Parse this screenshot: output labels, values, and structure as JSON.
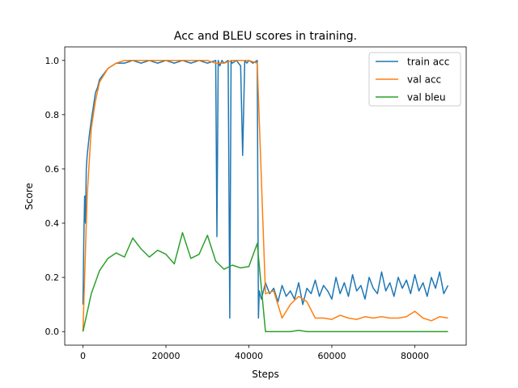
{
  "chart_data": {
    "type": "line",
    "title": "Acc and BLEU scores in training.",
    "xlabel": "Steps",
    "ylabel": "Score",
    "xlim": [
      -4400,
      92400
    ],
    "ylim": [
      -0.05,
      1.05
    ],
    "x_ticks": [
      0,
      20000,
      40000,
      60000,
      80000
    ],
    "x_tick_labels": [
      "0",
      "20000",
      "40000",
      "60000",
      "80000"
    ],
    "y_ticks": [
      0.0,
      0.2,
      0.4,
      0.6,
      0.8,
      1.0
    ],
    "y_tick_labels": [
      "0.0",
      "0.2",
      "0.4",
      "0.6",
      "0.8",
      "1.0"
    ],
    "grid": false,
    "legend_position": "top-right",
    "series": [
      {
        "name": "train acc",
        "color": "#1f77b4",
        "x": [
          0,
          200,
          400,
          600,
          800,
          1000,
          1500,
          2000,
          2500,
          3000,
          3500,
          4000,
          5000,
          6000,
          7000,
          8000,
          10000,
          12000,
          14000,
          16000,
          18000,
          20000,
          22000,
          24000,
          26000,
          28000,
          30000,
          32000,
          32300,
          32600,
          33000,
          33500,
          34000,
          35000,
          35400,
          35700,
          36000,
          37000,
          38000,
          38500,
          39000,
          39500,
          40000,
          41000,
          42000,
          42300,
          42500,
          43000,
          44000,
          45000,
          46000,
          47000,
          48000,
          49000,
          50000,
          51000,
          52000,
          53000,
          54000,
          55000,
          56000,
          57000,
          58000,
          59000,
          60000,
          61000,
          62000,
          63000,
          64000,
          65000,
          66000,
          67000,
          68000,
          69000,
          70000,
          71000,
          72000,
          73000,
          74000,
          75000,
          76000,
          77000,
          78000,
          79000,
          80000,
          81000,
          82000,
          83000,
          84000,
          85000,
          86000,
          87000,
          88000
        ],
        "y": [
          0.1,
          0.35,
          0.5,
          0.4,
          0.6,
          0.65,
          0.72,
          0.78,
          0.83,
          0.88,
          0.9,
          0.93,
          0.95,
          0.97,
          0.98,
          0.99,
          0.99,
          1.0,
          0.99,
          1.0,
          0.99,
          1.0,
          0.99,
          1.0,
          0.99,
          1.0,
          0.99,
          1.0,
          0.35,
          1.0,
          0.98,
          1.0,
          0.99,
          1.0,
          0.05,
          1.0,
          0.99,
          1.0,
          0.98,
          0.65,
          1.0,
          0.99,
          1.0,
          0.99,
          1.0,
          0.05,
          0.15,
          0.12,
          0.18,
          0.14,
          0.16,
          0.11,
          0.17,
          0.13,
          0.15,
          0.12,
          0.18,
          0.1,
          0.16,
          0.14,
          0.19,
          0.13,
          0.17,
          0.15,
          0.12,
          0.2,
          0.14,
          0.18,
          0.13,
          0.21,
          0.15,
          0.17,
          0.12,
          0.2,
          0.16,
          0.14,
          0.22,
          0.15,
          0.18,
          0.13,
          0.2,
          0.16,
          0.19,
          0.14,
          0.21,
          0.15,
          0.18,
          0.13,
          0.2,
          0.16,
          0.22,
          0.14,
          0.17
        ]
      },
      {
        "name": "val acc",
        "color": "#ff7f0e",
        "x": [
          0,
          1000,
          2000,
          3000,
          4000,
          6000,
          8000,
          10000,
          12000,
          14000,
          16000,
          18000,
          20000,
          22000,
          24000,
          26000,
          28000,
          30000,
          32000,
          34000,
          36000,
          38000,
          40000,
          42000,
          44000,
          46000,
          48000,
          50000,
          52000,
          54000,
          56000,
          58000,
          60000,
          62000,
          64000,
          66000,
          68000,
          70000,
          72000,
          74000,
          76000,
          78000,
          80000,
          82000,
          84000,
          86000,
          88000
        ],
        "y": [
          0.0,
          0.5,
          0.75,
          0.85,
          0.92,
          0.97,
          0.99,
          1.0,
          1.0,
          1.0,
          1.0,
          1.0,
          1.0,
          1.0,
          1.0,
          1.0,
          1.0,
          1.0,
          0.99,
          0.99,
          1.0,
          1.0,
          1.0,
          0.99,
          0.14,
          0.15,
          0.05,
          0.1,
          0.13,
          0.11,
          0.05,
          0.05,
          0.045,
          0.06,
          0.05,
          0.045,
          0.055,
          0.05,
          0.055,
          0.05,
          0.05,
          0.055,
          0.075,
          0.05,
          0.04,
          0.055,
          0.05
        ]
      },
      {
        "name": "val bleu",
        "color": "#2ca02c",
        "x": [
          0,
          2000,
          4000,
          6000,
          8000,
          10000,
          12000,
          14000,
          16000,
          18000,
          20000,
          22000,
          24000,
          26000,
          28000,
          30000,
          32000,
          34000,
          36000,
          38000,
          40000,
          42000,
          44000,
          46000,
          48000,
          50000,
          52000,
          54000,
          56000,
          58000,
          60000,
          62000,
          64000,
          66000,
          68000,
          70000,
          72000,
          74000,
          76000,
          78000,
          80000,
          82000,
          84000,
          86000,
          88000
        ],
        "y": [
          0.0,
          0.14,
          0.225,
          0.27,
          0.29,
          0.275,
          0.345,
          0.305,
          0.275,
          0.3,
          0.285,
          0.25,
          0.365,
          0.27,
          0.285,
          0.355,
          0.26,
          0.23,
          0.245,
          0.235,
          0.24,
          0.325,
          0.0,
          0.0,
          0.0,
          0.0,
          0.005,
          0.0,
          0.0,
          0.0,
          0.0,
          0.0,
          0.0,
          0.0,
          0.0,
          0.0,
          0.0,
          0.0,
          0.0,
          0.0,
          0.0,
          0.0,
          0.0,
          0.0,
          0.0
        ]
      }
    ]
  }
}
